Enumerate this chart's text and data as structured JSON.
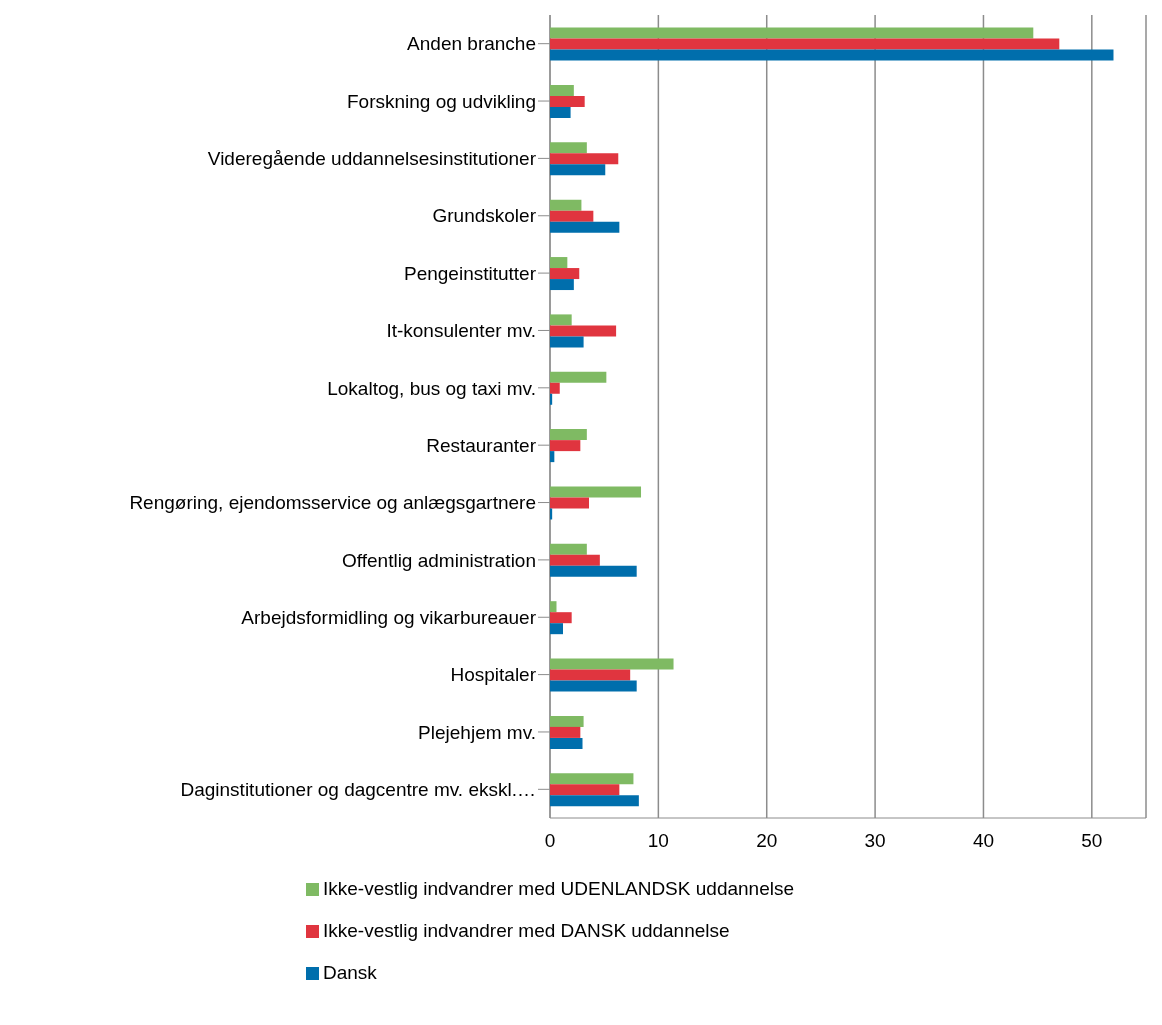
{
  "chart_data": {
    "type": "bar",
    "orientation": "horizontal",
    "categories": [
      "Anden branche",
      "Forskning og udvikling",
      "Videregående uddannelsesinstitutioner",
      "Grundskoler",
      "Pengeinstitutter",
      "It-konsulenter mv.",
      "Lokaltog, bus og taxi mv.",
      "Restauranter",
      "Rengøring, ejendomsservice og anlægsgartnere",
      "Offentlig administration",
      "Arbejdsformidling og vikarbureauer",
      "Hospitaler",
      "Plejehjem mv.",
      "Daginstitutioner og dagcentre mv. ekskl.…"
    ],
    "series": [
      {
        "name": "Ikke-vestlig indvandrer med UDENLANDSK uddannelse",
        "color": "#7fba63",
        "values": [
          44.6,
          2.2,
          3.4,
          2.9,
          1.6,
          2.0,
          5.2,
          3.4,
          8.4,
          3.4,
          0.6,
          11.4,
          3.1,
          7.7
        ]
      },
      {
        "name": "Ikke-vestlig indvandrer med DANSK uddannelse",
        "color": "#e0353f",
        "values": [
          47.0,
          3.2,
          6.3,
          4.0,
          2.7,
          6.1,
          0.9,
          2.8,
          3.6,
          4.6,
          2.0,
          7.4,
          2.8,
          6.4
        ]
      },
      {
        "name": "Dansk",
        "color": "#006eac",
        "values": [
          52.0,
          1.9,
          5.1,
          6.4,
          2.2,
          3.1,
          0.2,
          0.4,
          0.2,
          8.0,
          1.2,
          8.0,
          3.0,
          8.2
        ]
      }
    ],
    "xlim": [
      0,
      55
    ],
    "xticks": [
      0,
      10,
      20,
      30,
      40,
      50
    ],
    "grid": "x",
    "legend": "bottom"
  }
}
